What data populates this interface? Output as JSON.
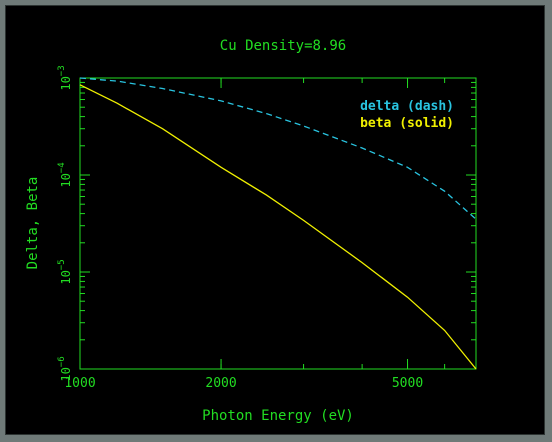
{
  "chart_data": {
    "type": "line",
    "title": "Cu Density=8.96",
    "xlabel": "Photon Energy (eV)",
    "ylabel": "Delta, Beta",
    "xscale": "log",
    "yscale": "log",
    "xlim": [
      1000,
      7000
    ],
    "ylim": [
      1e-06,
      0.001
    ],
    "grid": false,
    "legend_position": "top-right",
    "x_tick_labels": [
      {
        "value": 1000,
        "label": "1000"
      },
      {
        "value": 2000,
        "label": "2000"
      },
      {
        "value": 5000,
        "label": "5000"
      }
    ],
    "y_tick_labels": [
      {
        "value": 0.001,
        "base": "10",
        "exp": "−3"
      },
      {
        "value": 0.0001,
        "base": "10",
        "exp": "−4"
      },
      {
        "value": 1e-05,
        "base": "10",
        "exp": "−5"
      },
      {
        "value": 1e-06,
        "base": "10",
        "exp": "−6"
      }
    ],
    "series": [
      {
        "name": "delta (dash)",
        "color": "#29c4e0",
        "style": "dashed",
        "x": [
          1000,
          1200,
          1500,
          2000,
          2500,
          3000,
          4000,
          5000,
          6000,
          7000
        ],
        "y": [
          0.001,
          0.00093,
          0.00078,
          0.00058,
          0.00043,
          0.00032,
          0.00019,
          0.00012,
          6.8e-05,
          3.5e-05
        ]
      },
      {
        "name": "beta (solid)",
        "color": "#f0f000",
        "style": "solid",
        "x": [
          1000,
          1200,
          1500,
          2000,
          2500,
          3000,
          4000,
          5000,
          6000,
          7000
        ],
        "y": [
          0.00085,
          0.00055,
          0.0003,
          0.00012,
          6.2e-05,
          3.4e-05,
          1.25e-05,
          5.5e-06,
          2.5e-06,
          1e-06
        ]
      }
    ]
  }
}
